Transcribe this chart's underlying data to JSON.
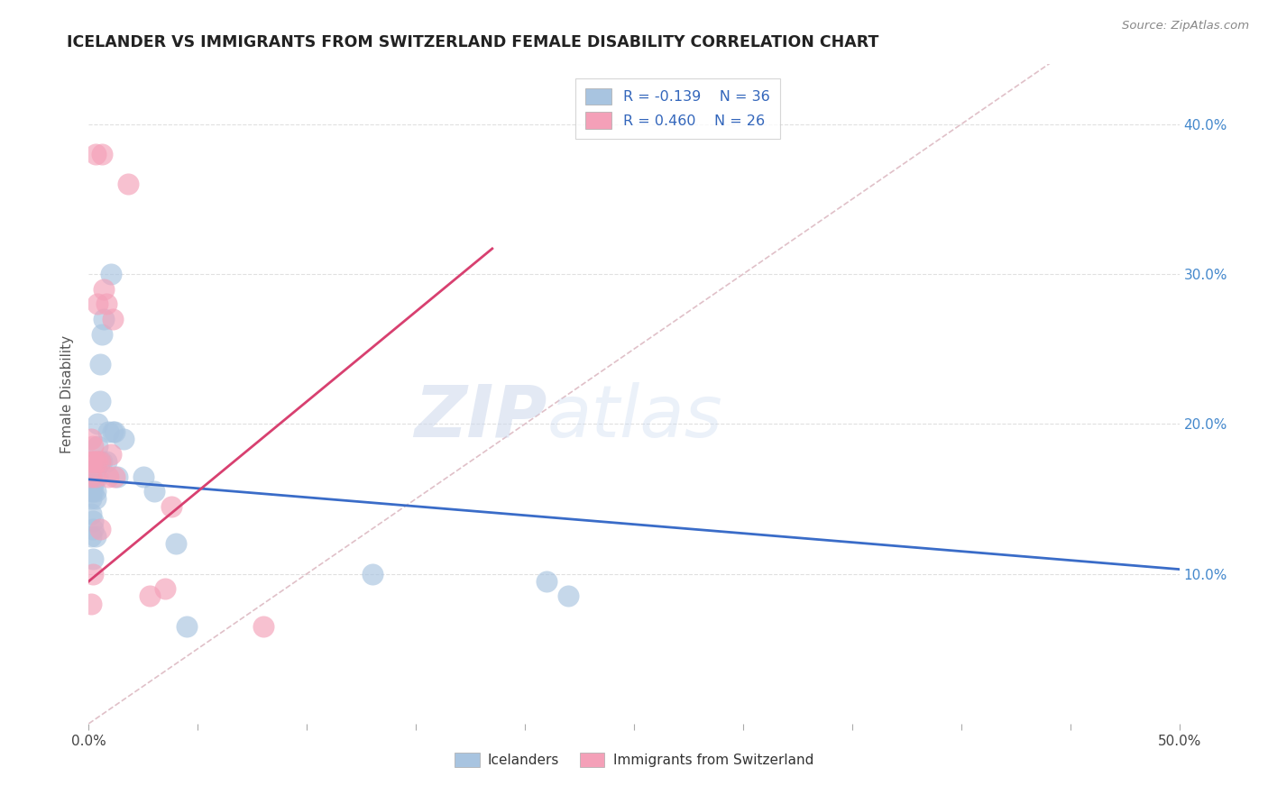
{
  "title": "ICELANDER VS IMMIGRANTS FROM SWITZERLAND FEMALE DISABILITY CORRELATION CHART",
  "source": "Source: ZipAtlas.com",
  "ylabel": "Female Disability",
  "xlim": [
    0.0,
    0.5
  ],
  "ylim": [
    0.0,
    0.44
  ],
  "y_ticks": [
    0.1,
    0.2,
    0.3,
    0.4
  ],
  "y_tick_labels": [
    "10.0%",
    "20.0%",
    "30.0%",
    "40.0%"
  ],
  "legend_blue_r": "R = -0.139",
  "legend_blue_n": "N = 36",
  "legend_pink_r": "R = 0.460",
  "legend_pink_n": "N = 26",
  "watermark_zip": "ZIP",
  "watermark_atlas": "atlas",
  "icelanders_x": [
    0.001,
    0.001,
    0.001,
    0.001,
    0.002,
    0.002,
    0.002,
    0.002,
    0.002,
    0.003,
    0.003,
    0.003,
    0.003,
    0.004,
    0.004,
    0.004,
    0.005,
    0.005,
    0.005,
    0.006,
    0.006,
    0.007,
    0.008,
    0.009,
    0.01,
    0.011,
    0.012,
    0.013,
    0.016,
    0.025,
    0.03,
    0.04,
    0.045,
    0.13,
    0.21,
    0.22
  ],
  "icelanders_y": [
    0.155,
    0.15,
    0.14,
    0.125,
    0.16,
    0.155,
    0.135,
    0.13,
    0.11,
    0.17,
    0.155,
    0.15,
    0.125,
    0.185,
    0.2,
    0.165,
    0.24,
    0.215,
    0.175,
    0.26,
    0.175,
    0.27,
    0.175,
    0.195,
    0.3,
    0.195,
    0.195,
    0.165,
    0.19,
    0.165,
    0.155,
    0.12,
    0.065,
    0.1,
    0.095,
    0.085
  ],
  "swiss_x": [
    0.001,
    0.001,
    0.001,
    0.001,
    0.002,
    0.002,
    0.002,
    0.003,
    0.003,
    0.003,
    0.004,
    0.004,
    0.005,
    0.005,
    0.006,
    0.007,
    0.008,
    0.009,
    0.01,
    0.011,
    0.012,
    0.018,
    0.028,
    0.035,
    0.038,
    0.08
  ],
  "swiss_y": [
    0.19,
    0.175,
    0.165,
    0.08,
    0.185,
    0.175,
    0.1,
    0.38,
    0.175,
    0.165,
    0.28,
    0.175,
    0.175,
    0.13,
    0.38,
    0.29,
    0.28,
    0.165,
    0.18,
    0.27,
    0.165,
    0.36,
    0.085,
    0.09,
    0.145,
    0.065
  ],
  "blue_color": "#a8c4e0",
  "pink_color": "#f4a0b8",
  "blue_line_color": "#3a6cc8",
  "pink_line_color": "#d84070",
  "diagonal_color": "#e0c0c8",
  "background_color": "#ffffff",
  "grid_color": "#e0e0e0",
  "blue_intercept": 0.163,
  "blue_slope": -0.12,
  "pink_intercept": 0.095,
  "pink_slope": 1.2,
  "pink_line_xmax": 0.185
}
